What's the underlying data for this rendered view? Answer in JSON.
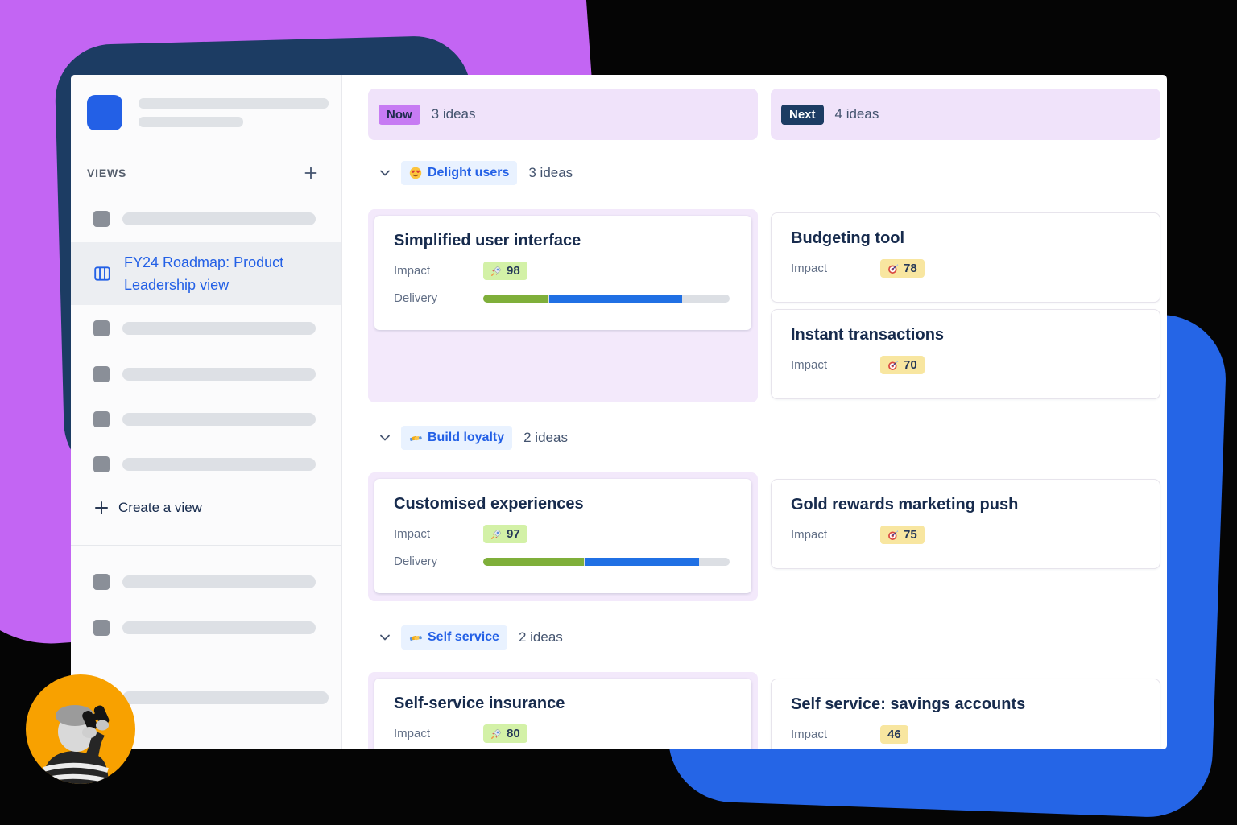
{
  "colors": {
    "purple_blob": "#C365F3",
    "navy_shape": "#1C3C63",
    "blue_blob": "#2565E6",
    "orange_circle": "#F8A100",
    "brand_blue": "#2360E6",
    "link_blue": "#2360E6",
    "now_badge_bg": "#C77BF3",
    "next_badge_bg": "#1C3C63",
    "column_header_bg": "#F0E3FA",
    "lavender_container": "#F3E9FB",
    "group_pill_bg": "#E9F2FF",
    "group_pill_text": "#2360E6",
    "green_badge_bg": "#D3F1A7",
    "yellow_badge_bg": "#F8E6A0",
    "progress_done": "#7FAF3A",
    "progress_active": "#2070E4",
    "progress_track": "#DCDFE4",
    "title_text": "#172B4D",
    "muted_text": "#626F86"
  },
  "sidebar": {
    "views_heading": "VIEWS",
    "selected_view_label": "FY24 Roadmap: Product Leadership view",
    "create_view_label": "Create a view"
  },
  "columns": [
    {
      "badge": "Now",
      "count": "3 ideas"
    },
    {
      "badge": "Next",
      "count": "4 ideas"
    }
  ],
  "groups": [
    {
      "emoji_icon": "heart-eyes-emoji",
      "label": "Delight users",
      "count": "3 ideas",
      "now_cards": [
        {
          "title": "Simplified user interface",
          "impact_label": "Impact",
          "impact_icon": "rocket-emoji",
          "impact_value": "98",
          "delivery_label": "Delivery",
          "delivery_segments": {
            "done_pct": 26,
            "in_progress_pct": 54
          }
        }
      ],
      "next_cards": [
        {
          "title": "Budgeting tool",
          "impact_label": "Impact",
          "impact_icon": "dart-emoji",
          "impact_value": "78"
        },
        {
          "title": "Instant transactions",
          "impact_label": "Impact",
          "impact_icon": "dart-emoji",
          "impact_value": "70"
        }
      ]
    },
    {
      "emoji_icon": "handshake-emoji",
      "label": "Build loyalty",
      "count": "2 ideas",
      "now_cards": [
        {
          "title": "Customised experiences",
          "impact_label": "Impact",
          "impact_icon": "rocket-emoji",
          "impact_value": "97",
          "delivery_label": "Delivery",
          "delivery_segments": {
            "done_pct": 41,
            "in_progress_pct": 46
          }
        }
      ],
      "next_cards": [
        {
          "title": "Gold rewards marketing push",
          "impact_label": "Impact",
          "impact_icon": "dart-emoji",
          "impact_value": "75"
        }
      ]
    },
    {
      "emoji_icon": "handshake-emoji",
      "label": "Self service",
      "count": "2 ideas",
      "now_cards": [
        {
          "title": "Self-service insurance",
          "impact_label": "Impact",
          "impact_icon": "rocket-emoji",
          "impact_value": "80"
        }
      ],
      "next_cards": [
        {
          "title": "Self service: savings accounts",
          "impact_label": "Impact",
          "impact_icon": "none",
          "impact_value": "46"
        }
      ]
    }
  ]
}
